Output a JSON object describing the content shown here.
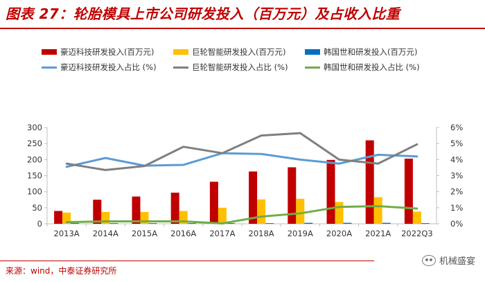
{
  "header": {
    "title": "图表 27：轮胎模具上市公司研发投入（百万元）及占收入比重"
  },
  "footer": {
    "source": "来源：wind，中泰证券研究所",
    "watermark": "机械盛宴"
  },
  "chart_data": {
    "type": "bar+line",
    "categories": [
      "2013A",
      "2014A",
      "2015A",
      "2016A",
      "2017A",
      "2018A",
      "2019A",
      "2020A",
      "2021A",
      "2022Q3"
    ],
    "bar_series": [
      {
        "name": "豪迈科技研发投入(百万元)",
        "color": "#c00000",
        "values": [
          40,
          75,
          85,
          97,
          131,
          163,
          176,
          199,
          260,
          203
        ]
      },
      {
        "name": "巨轮智能研发投入(百万元)",
        "color": "#ffc000",
        "values": [
          35,
          37,
          37,
          40,
          50,
          76,
          78,
          68,
          83,
          38
        ]
      },
      {
        "name": "韩国世和研发投入(百万元)",
        "color": "#0070c0",
        "values": [
          2,
          2,
          2,
          2,
          2,
          2,
          3,
          3,
          3,
          2
        ]
      }
    ],
    "line_series": [
      {
        "name": "豪迈科技研发投入占比 (%)",
        "color": "#5b9bd5",
        "values": [
          3.55,
          4.1,
          3.62,
          3.67,
          4.4,
          4.35,
          4.0,
          3.75,
          4.3,
          4.2
        ]
      },
      {
        "name": "巨轮智能研发投入占比 (%)",
        "color": "#7f7f7f",
        "values": [
          3.75,
          3.35,
          3.6,
          4.8,
          4.4,
          5.5,
          5.65,
          4.0,
          3.75,
          4.95
        ]
      },
      {
        "name": "韩国世和研发投入占比 (%)",
        "color": "#70ad47",
        "values": [
          0.1,
          0.15,
          0.15,
          0.15,
          0.02,
          0.45,
          0.65,
          1.05,
          1.1,
          0.95
        ]
      }
    ],
    "y_left": {
      "min": 0,
      "max": 300,
      "ticks": [
        "0",
        "50",
        "100",
        "150",
        "200",
        "250",
        "300"
      ]
    },
    "y_right": {
      "min": 0,
      "max": 6,
      "ticks": [
        "0%",
        "1%",
        "2%",
        "3%",
        "4%",
        "5%",
        "6%"
      ]
    },
    "legend_position": "top"
  }
}
